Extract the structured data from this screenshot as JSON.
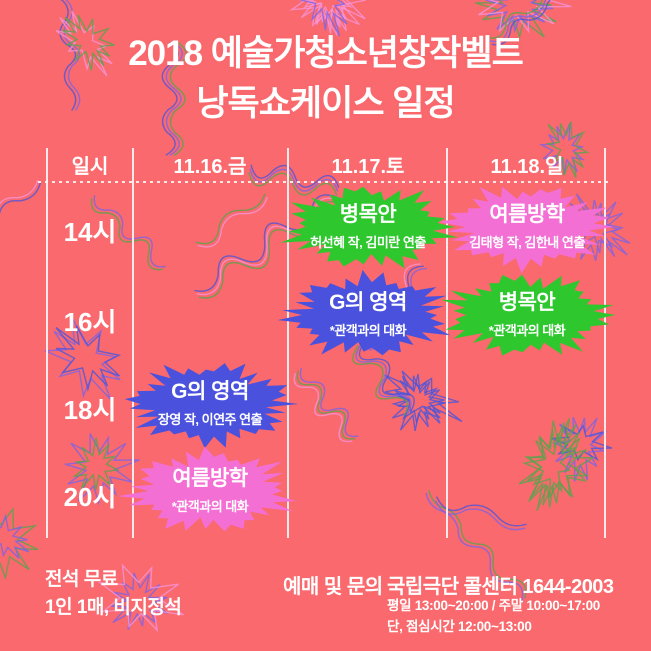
{
  "title": {
    "line1": "2018 예술가청소년창작벨트",
    "line2": "낭독쇼케이스 일정"
  },
  "table": {
    "date_col_header": "일시",
    "day_headers": [
      "11.16.금",
      "11.17.토",
      "11.18.일"
    ],
    "time_rows": [
      "14시",
      "16시",
      "18시",
      "20시"
    ]
  },
  "events": [
    {
      "title": "병목안",
      "subtitle": "허선혜 작, 김미란 연출",
      "day": "11.17.토",
      "time": "14시",
      "color": "#2ec72e"
    },
    {
      "title": "여름방학",
      "subtitle": "김태형 작, 김한내 연출",
      "day": "11.18.일",
      "time": "14시",
      "color": "#f36fd4"
    },
    {
      "title": "G의 영역",
      "subtitle": "*관객과의 대화",
      "day": "11.17.토",
      "time": "16시",
      "color": "#4a52dd"
    },
    {
      "title": "병목안",
      "subtitle": "*관객과의 대화",
      "day": "11.18.일",
      "time": "16시",
      "color": "#2ec72e"
    },
    {
      "title": "G의 영역",
      "subtitle": "장영 작, 이연주 연출",
      "day": "11.16.금",
      "time": "18시",
      "color": "#4a52dd"
    },
    {
      "title": "여름방학",
      "subtitle": "*관객과의 대화",
      "day": "11.16.금",
      "time": "20시",
      "color": "#f36fd4"
    }
  ],
  "footer": {
    "left_line1": "전석 무료",
    "left_line2": "1인 1매, 비지정석",
    "contact_label": "예매 및 문의",
    "contact_name": "국립극단 콜센터 1644-2003",
    "hours_line1": "평일 13:00~20:00 / 주말 10:00~17:00",
    "hours_line2": "단, 점심시간 12:00~13:00"
  },
  "colors": {
    "background": "#f9696d",
    "badge_green": "#2ec72e",
    "badge_blue": "#4a52dd",
    "badge_pink": "#f36fd4",
    "text": "#ffffff",
    "squiggle_purple": "#7d63e6",
    "squiggle_green": "#57a44c",
    "squiggle_pink": "#f793da",
    "squiggle_blue": "#4a55dd"
  }
}
